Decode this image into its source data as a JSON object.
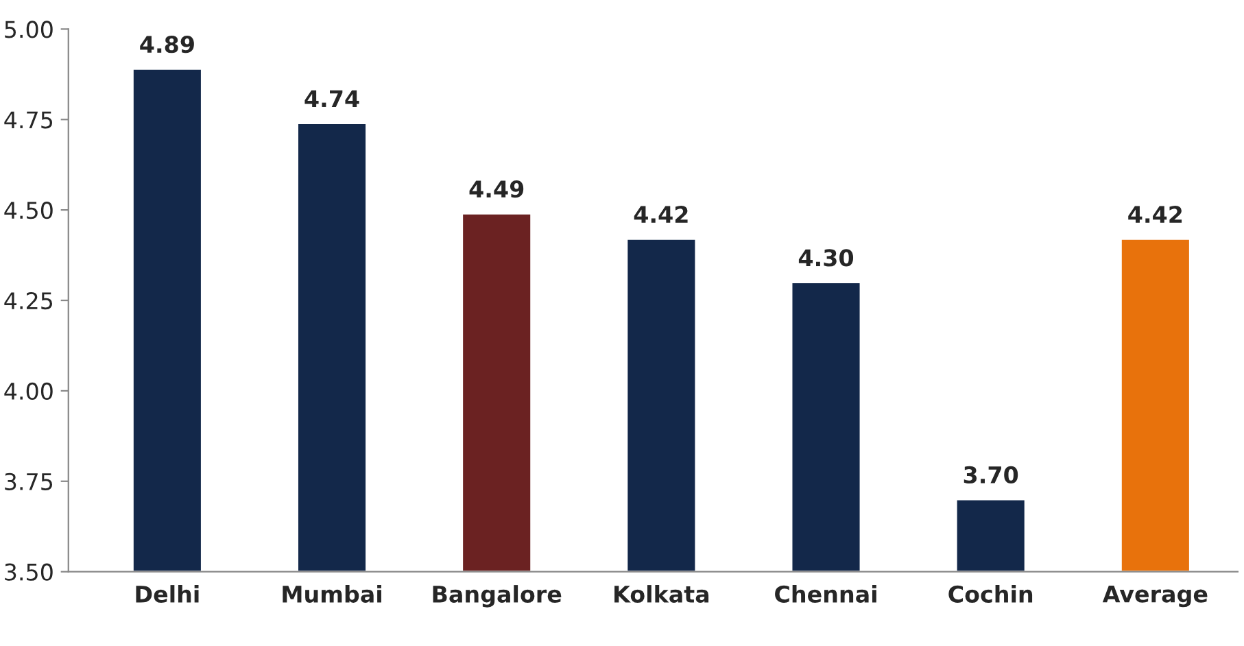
{
  "chart_data": {
    "type": "bar",
    "categories": [
      "Delhi",
      "Mumbai",
      "Bangalore",
      "Kolkata",
      "Chennai",
      "Cochin",
      "Average"
    ],
    "values": [
      4.89,
      4.74,
      4.49,
      4.42,
      4.3,
      3.7,
      4.42
    ],
    "colors": [
      "#13284a",
      "#13284a",
      "#6b2222",
      "#13284a",
      "#13284a",
      "#13284a",
      "#e8720c"
    ],
    "value_labels": [
      "4.89",
      "4.74",
      "4.49",
      "4.42",
      "4.30",
      "3.70",
      "4.42"
    ],
    "ylim": [
      3.5,
      5.0
    ],
    "yticks": [
      {
        "value": 3.5,
        "label": "3.50"
      },
      {
        "value": 3.75,
        "label": "3.75"
      },
      {
        "value": 4.0,
        "label": "4.00"
      },
      {
        "value": 4.25,
        "label": "4.25"
      },
      {
        "value": 4.5,
        "label": "4.50"
      },
      {
        "value": 4.75,
        "label": "4.75"
      },
      {
        "value": 5.0,
        "label": "5.00"
      }
    ],
    "grid": false,
    "legend": false
  }
}
